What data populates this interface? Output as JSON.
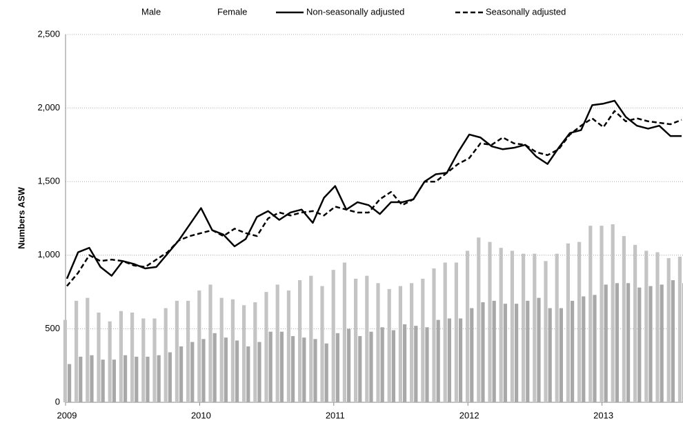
{
  "chart_data": {
    "type": "bar-line",
    "y_label": "Numbers ASW",
    "categories": [
      "2009",
      null,
      null,
      null,
      null,
      null,
      null,
      null,
      null,
      null,
      null,
      null,
      "2010",
      null,
      null,
      null,
      null,
      null,
      null,
      null,
      null,
      null,
      null,
      null,
      "2011",
      null,
      null,
      null,
      null,
      null,
      null,
      null,
      null,
      null,
      null,
      null,
      "2012",
      null,
      null,
      null,
      null,
      null,
      null,
      null,
      null,
      null,
      null,
      null,
      "2013",
      null,
      null,
      null,
      null,
      null,
      null,
      null
    ],
    "ylim": [
      0,
      2500
    ],
    "yticks": [
      0,
      500,
      {
        "value": 1000,
        "label": "1,000"
      },
      {
        "value": 1500,
        "label": "1,500"
      },
      {
        "value": 2000,
        "label": "2,000"
      },
      {
        "value": 2500,
        "label": "2,500"
      }
    ],
    "grid": true,
    "legend": "top",
    "series": [
      {
        "name": "Male",
        "kind": "bar",
        "color": "#c4c4c4",
        "values": [
          560,
          690,
          710,
          610,
          550,
          620,
          610,
          570,
          570,
          640,
          690,
          690,
          760,
          800,
          710,
          700,
          660,
          680,
          750,
          800,
          760,
          830,
          860,
          790,
          900,
          950,
          840,
          860,
          810,
          770,
          790,
          810,
          840,
          910,
          950,
          950,
          1030,
          1120,
          1090,
          1050,
          1030,
          1010,
          1010,
          960,
          1010,
          1080,
          1090,
          1200,
          1200,
          1210,
          1130,
          1070,
          1030,
          1020,
          980,
          990
        ]
      },
      {
        "name": "Female",
        "kind": "bar",
        "color": "#a8a8a8",
        "values": [
          260,
          310,
          320,
          290,
          290,
          320,
          310,
          310,
          320,
          340,
          380,
          410,
          430,
          470,
          440,
          420,
          380,
          410,
          480,
          480,
          450,
          440,
          430,
          400,
          470,
          500,
          450,
          480,
          510,
          490,
          530,
          520,
          510,
          560,
          570,
          570,
          640,
          680,
          690,
          670,
          670,
          690,
          710,
          640,
          640,
          690,
          720,
          730,
          800,
          810,
          810,
          780,
          790,
          800,
          830,
          810
        ]
      },
      {
        "name": "Non-seasonally adjusted",
        "kind": "line",
        "style": "solid",
        "color": "#000000",
        "values": [
          840,
          1020,
          1050,
          920,
          860,
          960,
          940,
          910,
          920,
          1010,
          1100,
          1210,
          1320,
          1170,
          1140,
          1060,
          1110,
          1260,
          1300,
          1240,
          1290,
          1310,
          1220,
          1390,
          1470,
          1310,
          1360,
          1340,
          1280,
          1360,
          1360,
          1380,
          1500,
          1550,
          1560,
          1700,
          1820,
          1800,
          1740,
          1720,
          1730,
          1750,
          1670,
          1620,
          1730,
          1830,
          1850,
          2020,
          2030,
          2050,
          1940,
          1880,
          1860,
          1880,
          1810,
          1810
        ]
      },
      {
        "name": "Seasonally adjusted",
        "kind": "line",
        "style": "dashed",
        "color": "#000000",
        "values": [
          790,
          880,
          1000,
          960,
          970,
          960,
          930,
          920,
          970,
          1020,
          1100,
          1130,
          1150,
          1170,
          1130,
          1180,
          1150,
          1130,
          1250,
          1290,
          1270,
          1290,
          1300,
          1270,
          1330,
          1310,
          1290,
          1290,
          1380,
          1430,
          1340,
          1380,
          1500,
          1500,
          1560,
          1620,
          1660,
          1760,
          1750,
          1800,
          1760,
          1750,
          1700,
          1680,
          1720,
          1820,
          1880,
          1930,
          1870,
          1980,
          1910,
          1930,
          1910,
          1900,
          1890,
          1920
        ]
      }
    ]
  }
}
